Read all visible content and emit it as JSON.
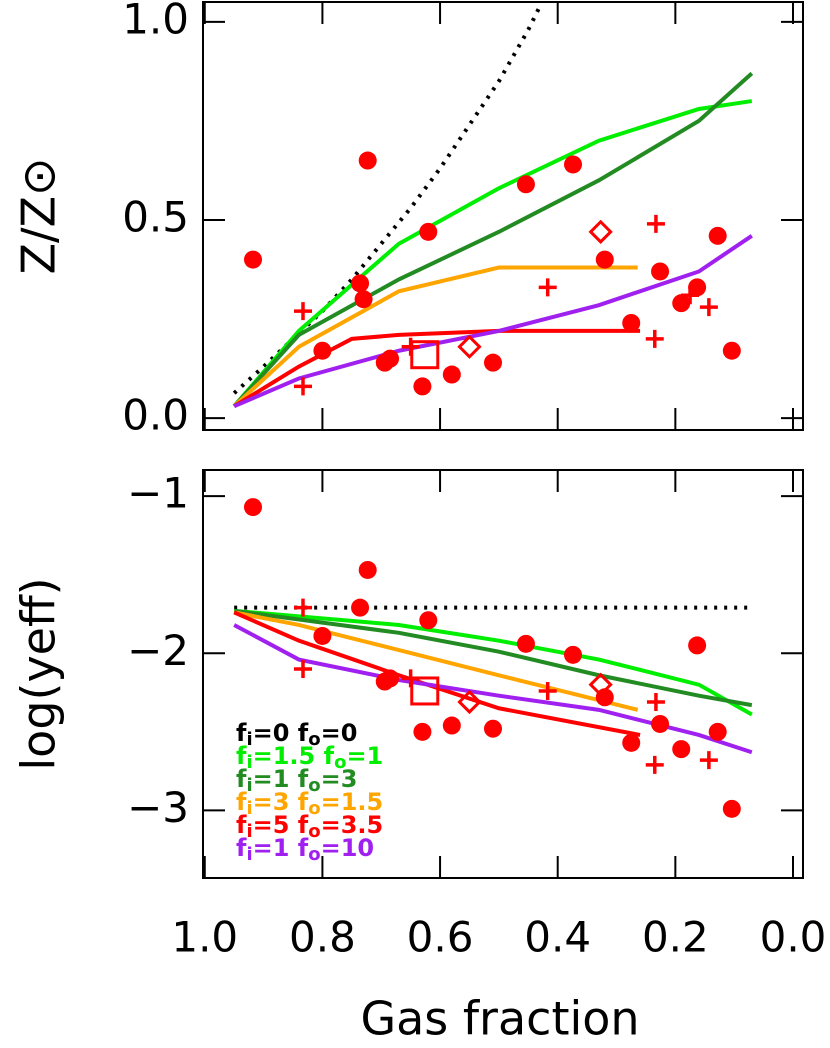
{
  "chart_data": [
    {
      "type": "line",
      "ylabel": "Z/Z⊙",
      "xlim": [
        1.003,
        -0.017
      ],
      "ylim": [
        -0.03,
        1.05
      ],
      "xticks": [
        1.0,
        0.8,
        0.6,
        0.4,
        0.2,
        0.0
      ],
      "show_xtick_labels": false,
      "yticks": [
        {
          "value": 0,
          "label": "0.0"
        },
        {
          "value": 0.5,
          "label": "0.5"
        },
        {
          "value": 1,
          "label": "1.0"
        }
      ],
      "legend": false,
      "series": [
        {
          "color": "#000000",
          "style": "dotted",
          "x": [
            0.95,
            0.9,
            0.85,
            0.8,
            0.75,
            0.7,
            0.65,
            0.6,
            0.55,
            0.5,
            0.45,
            0.43
          ],
          "values": [
            0.063,
            0.13,
            0.2,
            0.27,
            0.35,
            0.44,
            0.53,
            0.63,
            0.74,
            0.85,
            0.98,
            1.04
          ]
        },
        {
          "color": "#00ee00",
          "style": "solid",
          "x": [
            0.95,
            0.84,
            0.67,
            0.5,
            0.33,
            0.16,
            0.07
          ],
          "values": [
            0.03,
            0.22,
            0.44,
            0.58,
            0.7,
            0.78,
            0.8
          ]
        },
        {
          "color": "#228b22",
          "style": "solid",
          "x": [
            0.95,
            0.84,
            0.67,
            0.5,
            0.33,
            0.16,
            0.07
          ],
          "values": [
            0.03,
            0.21,
            0.35,
            0.47,
            0.6,
            0.75,
            0.87
          ]
        },
        {
          "color": "#ffa500",
          "style": "solid",
          "x": [
            0.95,
            0.84,
            0.67,
            0.5,
            0.264
          ],
          "values": [
            0.03,
            0.18,
            0.32,
            0.38,
            0.38
          ]
        },
        {
          "color": "#ff0000",
          "style": "solid",
          "x": [
            0.95,
            0.84,
            0.75,
            0.67,
            0.5,
            0.26
          ],
          "values": [
            0.03,
            0.13,
            0.2,
            0.21,
            0.22,
            0.22
          ]
        },
        {
          "color": "#a020f0",
          "style": "solid",
          "x": [
            0.95,
            0.84,
            0.67,
            0.5,
            0.33,
            0.16,
            0.07
          ],
          "values": [
            0.03,
            0.1,
            0.17,
            0.22,
            0.285,
            0.37,
            0.46
          ]
        }
      ],
      "points": [
        {
          "marker": "circle",
          "color": "#ff0000",
          "x": [
            0.918,
            0.723,
            0.736,
            0.73,
            0.8,
            0.694,
            0.685,
            0.62,
            0.63,
            0.58,
            0.51,
            0.454,
            0.374,
            0.32,
            0.226,
            0.275,
            0.19,
            0.163,
            0.128,
            0.104
          ],
          "values": [
            0.4,
            0.65,
            0.34,
            0.3,
            0.17,
            0.14,
            0.15,
            0.47,
            0.08,
            0.11,
            0.14,
            0.59,
            0.64,
            0.4,
            0.37,
            0.24,
            0.29,
            0.33,
            0.46,
            0.17
          ]
        },
        {
          "marker": "plus",
          "color": "#ff0000",
          "x": [
            0.833,
            0.833,
            0.65,
            0.417,
            0.233,
            0.235,
            0.175,
            0.143
          ],
          "values": [
            0.08,
            0.27,
            0.18,
            0.33,
            0.49,
            0.2,
            0.31,
            0.28
          ]
        },
        {
          "marker": "diamond",
          "color": "#ff0000",
          "x": [
            0.327,
            0.55
          ],
          "values": [
            0.47,
            0.18
          ]
        },
        {
          "marker": "square",
          "color": "#ff0000",
          "x": [
            0.626
          ],
          "values": [
            0.16
          ]
        }
      ]
    },
    {
      "type": "line",
      "ylabel": "log(yeff)",
      "xlabel": "Gas fraction",
      "xlim": [
        1.003,
        -0.017
      ],
      "ylim": [
        -3.43,
        -0.834
      ],
      "xticks": [
        {
          "value": 1,
          "label": "1.0"
        },
        {
          "value": 0.8,
          "label": "0.8"
        },
        {
          "value": 0.6,
          "label": "0.6"
        },
        {
          "value": 0.4,
          "label": "0.4"
        },
        {
          "value": 0.2,
          "label": "0.2"
        },
        {
          "value": 0,
          "label": "0.0"
        }
      ],
      "show_xtick_labels": true,
      "yticks": [
        {
          "value": -1,
          "label": "−1"
        },
        {
          "value": -2,
          "label": "−2"
        },
        {
          "value": -3,
          "label": "−3"
        }
      ],
      "legend": true,
      "series": [
        {
          "name": "fi=0  fo=0",
          "color": "#000000",
          "style": "dotted",
          "x": [
            0.95,
            0.07
          ],
          "values": [
            -1.71,
            -1.71
          ]
        },
        {
          "name": "fi=1.5  fo=1",
          "color": "#00ee00",
          "style": "solid",
          "x": [
            0.95,
            0.67,
            0.5,
            0.33,
            0.16,
            0.07
          ],
          "values": [
            -1.73,
            -1.82,
            -1.92,
            -2.04,
            -2.2,
            -2.39
          ]
        },
        {
          "name": "fi=1  fo=3",
          "color": "#228b22",
          "style": "solid",
          "x": [
            0.95,
            0.67,
            0.5,
            0.33,
            0.16,
            0.07
          ],
          "values": [
            -1.73,
            -1.87,
            -1.99,
            -2.14,
            -2.27,
            -2.33
          ]
        },
        {
          "name": "fi=3  fo=1.5",
          "color": "#ffa500",
          "style": "solid",
          "x": [
            0.95,
            0.84,
            0.67,
            0.5,
            0.264
          ],
          "values": [
            -1.74,
            -1.82,
            -1.98,
            -2.14,
            -2.36
          ]
        },
        {
          "name": "fi=5  fo=3.5",
          "color": "#ff0000",
          "style": "solid",
          "x": [
            0.95,
            0.84,
            0.67,
            0.5,
            0.26
          ],
          "values": [
            -1.74,
            -1.92,
            -2.14,
            -2.35,
            -2.52
          ]
        },
        {
          "name": "fi=1  fo=10",
          "color": "#a020f0",
          "style": "solid",
          "x": [
            0.95,
            0.84,
            0.67,
            0.5,
            0.33,
            0.16,
            0.07
          ],
          "values": [
            -1.82,
            -2.04,
            -2.17,
            -2.27,
            -2.36,
            -2.52,
            -2.63
          ]
        }
      ],
      "points": [
        {
          "marker": "circle",
          "color": "#ff0000",
          "x": [
            0.918,
            0.723,
            0.736,
            0.8,
            0.694,
            0.685,
            0.62,
            0.63,
            0.58,
            0.51,
            0.454,
            0.374,
            0.32,
            0.226,
            0.275,
            0.19,
            0.163,
            0.128,
            0.104
          ],
          "values": [
            -1.07,
            -1.47,
            -1.71,
            -1.89,
            -2.18,
            -2.16,
            -1.79,
            -2.5,
            -2.46,
            -2.48,
            -1.94,
            -2.01,
            -2.28,
            -2.45,
            -2.57,
            -2.61,
            -1.95,
            -2.5,
            -2.99
          ]
        },
        {
          "marker": "plus",
          "color": "#ff0000",
          "x": [
            0.833,
            0.833,
            0.65,
            0.417,
            0.233,
            0.235,
            0.143
          ],
          "values": [
            -2.1,
            -1.71,
            -2.16,
            -2.24,
            -2.31,
            -2.71,
            -2.68
          ]
        },
        {
          "marker": "diamond",
          "color": "#ff0000",
          "x": [
            0.327,
            0.55
          ],
          "values": [
            -2.2,
            -2.31
          ]
        },
        {
          "marker": "square",
          "color": "#ff0000",
          "x": [
            0.626
          ],
          "values": [
            -2.24
          ]
        }
      ]
    }
  ]
}
